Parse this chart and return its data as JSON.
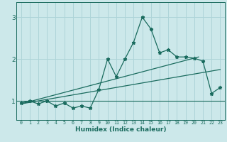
{
  "title": "",
  "xlabel": "Humidex (Indice chaleur)",
  "bg_color": "#cce8ea",
  "grid_color": "#aed4d8",
  "line_color": "#1a6b5e",
  "xlim": [
    -0.5,
    23.5
  ],
  "ylim": [
    0.55,
    3.35
  ],
  "yticks": [
    1,
    2,
    3
  ],
  "xtick_labels": [
    "0",
    "1",
    "2",
    "3",
    "4",
    "5",
    "6",
    "7",
    "8",
    "9",
    "10",
    "11",
    "12",
    "13",
    "14",
    "15",
    "16",
    "17",
    "18",
    "19",
    "20",
    "21",
    "22",
    "23"
  ],
  "zigzag_x": [
    0,
    1,
    2,
    3,
    4,
    5,
    6,
    7,
    8,
    9,
    10,
    11,
    12,
    13,
    14,
    15,
    16,
    17,
    18,
    19,
    20,
    21,
    22,
    23
  ],
  "zigzag_y": [
    0.95,
    1.0,
    0.93,
    1.0,
    0.88,
    0.95,
    0.83,
    0.88,
    0.83,
    1.28,
    2.0,
    1.58,
    2.0,
    2.4,
    3.0,
    2.72,
    2.15,
    2.22,
    2.05,
    2.05,
    2.02,
    1.95,
    1.18,
    1.32
  ],
  "line1_x": [
    0,
    23
  ],
  "line1_y": [
    0.93,
    1.75
  ],
  "line2_x": [
    0,
    20.5
  ],
  "line2_y": [
    0.93,
    2.05
  ],
  "hline_y": 1.0
}
